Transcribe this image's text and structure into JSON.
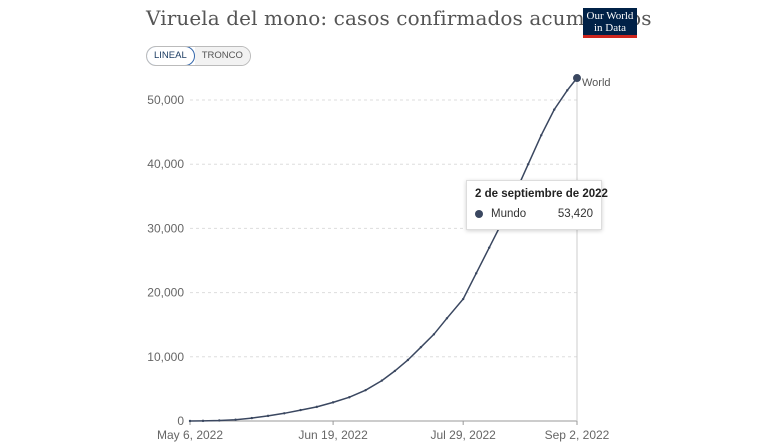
{
  "header": {
    "title": "Viruela del mono: casos confirmados acumulados",
    "logo_line1": "Our World",
    "logo_line2": "in Data"
  },
  "toggle": {
    "linear_label": "LINEAL",
    "log_label": "TRONCO",
    "selected": "LINEAL"
  },
  "tooltip": {
    "date": "2 de septiembre de 2022",
    "series_name": "Mundo",
    "value": "53,420"
  },
  "colors": {
    "line": "#3a4760",
    "grid": "#dddddd",
    "axis_text": "#666666",
    "logo_bg": "#002147",
    "logo_accent": "#ce261e"
  },
  "chart_data": {
    "type": "line",
    "title": "Viruela del mono: casos confirmados acumulados",
    "xlabel": "",
    "ylabel": "",
    "x_range": [
      "2022-05-06",
      "2022-09-02"
    ],
    "ylim": [
      0,
      55000
    ],
    "y_ticks": [
      0,
      10000,
      20000,
      30000,
      40000,
      50000
    ],
    "y_tick_labels": [
      "0",
      "10,000",
      "20,000",
      "30,000",
      "40,000",
      "50,000"
    ],
    "x_tick_labels": [
      "May 6, 2022",
      "Jun 19, 2022",
      "Jul 29, 2022",
      "Sep 2, 2022"
    ],
    "x_tick_dates": [
      "2022-05-06",
      "2022-06-19",
      "2022-07-29",
      "2022-09-02"
    ],
    "grid": true,
    "series": [
      {
        "name": "World",
        "x": [
          "2022-05-06",
          "2022-05-10",
          "2022-05-15",
          "2022-05-20",
          "2022-05-25",
          "2022-05-30",
          "2022-06-04",
          "2022-06-09",
          "2022-06-14",
          "2022-06-19",
          "2022-06-24",
          "2022-06-29",
          "2022-07-04",
          "2022-07-08",
          "2022-07-12",
          "2022-07-16",
          "2022-07-20",
          "2022-07-24",
          "2022-07-29",
          "2022-08-02",
          "2022-08-06",
          "2022-08-10",
          "2022-08-14",
          "2022-08-18",
          "2022-08-22",
          "2022-08-26",
          "2022-08-30",
          "2022-09-02"
        ],
        "y": [
          0,
          20,
          80,
          200,
          450,
          800,
          1200,
          1700,
          2200,
          2900,
          3700,
          4800,
          6300,
          7800,
          9500,
          11500,
          13500,
          16000,
          19000,
          23000,
          27000,
          31000,
          35500,
          40000,
          44500,
          48500,
          51500,
          53420
        ]
      }
    ]
  }
}
